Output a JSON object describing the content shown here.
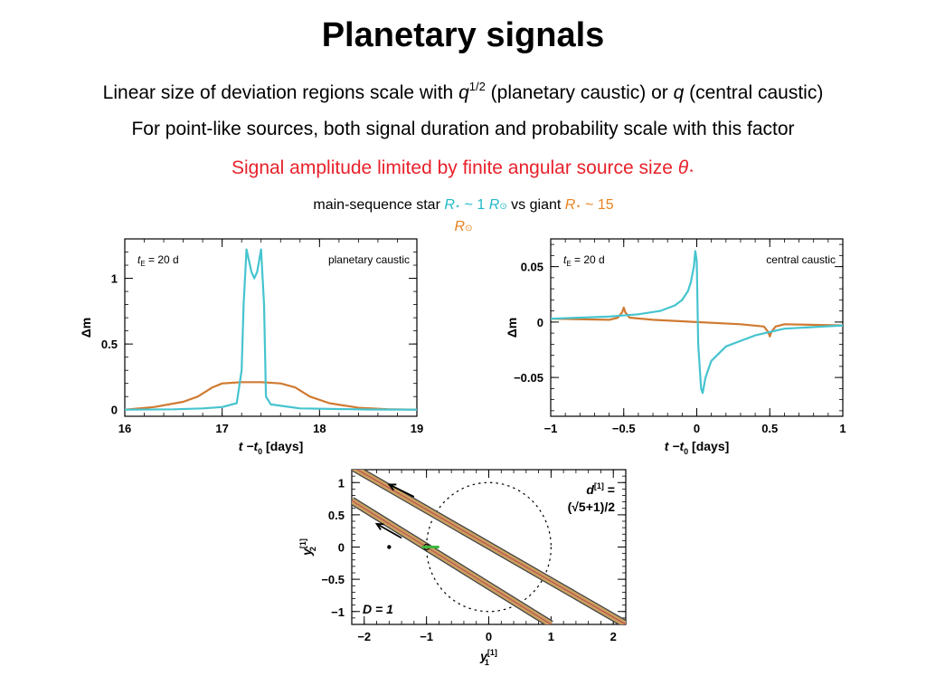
{
  "slide": {
    "title": "Planetary signals",
    "line1_a": "Linear size of deviation regions scale with ",
    "line1_q": "q",
    "line1_exp": "1/2",
    "line1_b": " (planetary caustic) or ",
    "line1_q2": "q",
    "line1_c": " (central caustic)",
    "line2": "For point-like sources, both signal duration and probability scale with this factor",
    "line3": "Signal amplitude limited by finite angular source size ",
    "line3_sym": "θ",
    "line3_sub": "⋆",
    "cap_a": "main-sequence star ",
    "cap_R1": "R",
    "cap_star": "⋆",
    "cap_b": " ~ 1 ",
    "cap_R2": "R",
    "cap_sun": "⊙",
    "cap_c": " vs giant ",
    "cap_R3": "R",
    "cap_d": " ~ 15 ",
    "cap_R4": "R"
  },
  "colors": {
    "cyan": "#45c4cf",
    "orange": "#d07a32",
    "green": "#3cb83c",
    "red": "#e8212b"
  },
  "chart_data": [
    {
      "type": "line",
      "panel_label": "planetary caustic",
      "tE_label": "= 20 d",
      "xlabel": "t −t",
      "xlabel_sub": "0",
      "xlabel_units": "[days]",
      "ylabel": "Δm",
      "xlim": [
        16,
        19
      ],
      "ylim": [
        -0.05,
        1.3
      ],
      "xticks": [
        16,
        17,
        18,
        19
      ],
      "yticks": [
        0,
        0.5,
        1
      ],
      "ytick_labels": [
        "0",
        "0.5",
        "1"
      ],
      "series": [
        {
          "x": [
            16,
            16.5,
            16.8,
            17.0,
            17.15,
            17.2,
            17.22,
            17.25,
            17.3,
            17.33,
            17.36,
            17.4,
            17.43,
            17.45,
            17.5,
            17.8,
            18.5,
            19
          ],
          "y": [
            0,
            0.003,
            0.01,
            0.02,
            0.05,
            0.3,
            0.8,
            1.22,
            1.05,
            1.0,
            1.05,
            1.22,
            0.8,
            0.1,
            0.04,
            0.01,
            0.002,
            0
          ]
        },
        {
          "x": [
            16,
            16.3,
            16.6,
            16.75,
            16.9,
            17.0,
            17.2,
            17.4,
            17.6,
            17.75,
            17.9,
            18.1,
            18.4,
            18.7,
            19
          ],
          "y": [
            0,
            0.02,
            0.06,
            0.1,
            0.17,
            0.2,
            0.21,
            0.21,
            0.2,
            0.17,
            0.1,
            0.05,
            0.015,
            0.004,
            0
          ]
        }
      ]
    },
    {
      "type": "line",
      "panel_label": "central caustic",
      "tE_label": "= 20 d",
      "xlabel": "t −t",
      "xlabel_sub": "0",
      "xlabel_units": "[days]",
      "ylabel": "Δm",
      "xlim": [
        -1,
        1
      ],
      "ylim": [
        -0.085,
        0.075
      ],
      "xticks": [
        -1,
        -0.5,
        0,
        0.5,
        1
      ],
      "yticks": [
        -0.05,
        0,
        0.05
      ],
      "ytick_labels": [
        "−0.05",
        "0",
        "0.05"
      ],
      "xtick_labels": [
        "−1",
        "−0.5",
        "0",
        "0.5",
        "1"
      ],
      "series": [
        {
          "x": [
            -1,
            -0.6,
            -0.4,
            -0.25,
            -0.15,
            -0.1,
            -0.06,
            -0.04,
            -0.02,
            -0.01,
            0.0,
            0.01,
            0.03,
            0.04,
            0.06,
            0.1,
            0.2,
            0.4,
            0.6,
            1
          ],
          "y": [
            0.003,
            0.005,
            0.007,
            0.01,
            0.015,
            0.02,
            0.028,
            0.036,
            0.05,
            0.064,
            0.055,
            -0.02,
            -0.06,
            -0.064,
            -0.05,
            -0.035,
            -0.022,
            -0.012,
            -0.006,
            -0.003
          ]
        },
        {
          "x": [
            -1,
            -0.6,
            -0.54,
            -0.51,
            -0.5,
            -0.49,
            -0.46,
            -0.3,
            0,
            0.3,
            0.46,
            0.49,
            0.5,
            0.51,
            0.54,
            0.6,
            1
          ],
          "y": [
            0.003,
            0.002,
            0.004,
            0.009,
            0.013,
            0.009,
            0.004,
            0.002,
            0,
            -0.002,
            -0.004,
            -0.009,
            -0.013,
            -0.009,
            -0.004,
            -0.002,
            -0.003
          ]
        }
      ]
    },
    {
      "type": "scatter",
      "panel_label": "",
      "d_label": "d",
      "d_sup": "[1]",
      "d_eq": " =",
      "d_expr": "(√5+1)/2",
      "D_label": "D = 1",
      "xlabel": "y",
      "xlabel_sub": "1",
      "xlabel_sup": "[1]",
      "ylabel": "y",
      "ylabel_sub": "2",
      "ylabel_sup": "[1]",
      "xlim": [
        -2.2,
        2.2
      ],
      "ylim": [
        -1.2,
        1.2
      ],
      "xticks": [
        -2,
        -1,
        0,
        1,
        2
      ],
      "yticks": [
        -1,
        -0.5,
        0,
        0.5,
        1
      ],
      "xtick_labels": [
        "−2",
        "−1",
        "0",
        "1",
        "2"
      ],
      "ytick_labels": [
        "−1",
        "−0.5",
        "0",
        "0.5",
        "1"
      ],
      "circle_radius": 1,
      "tracks": [
        {
          "x0": -2.2,
          "y0": 1.25,
          "x1": 2.2,
          "y1": -1.2
        },
        {
          "x0": -2.2,
          "y0": 0.72,
          "x1": 1.0,
          "y1": -1.2
        }
      ],
      "point": {
        "x": -1.6,
        "y": 0
      },
      "lens_point": {
        "x": -1.0,
        "y": 0
      }
    }
  ]
}
